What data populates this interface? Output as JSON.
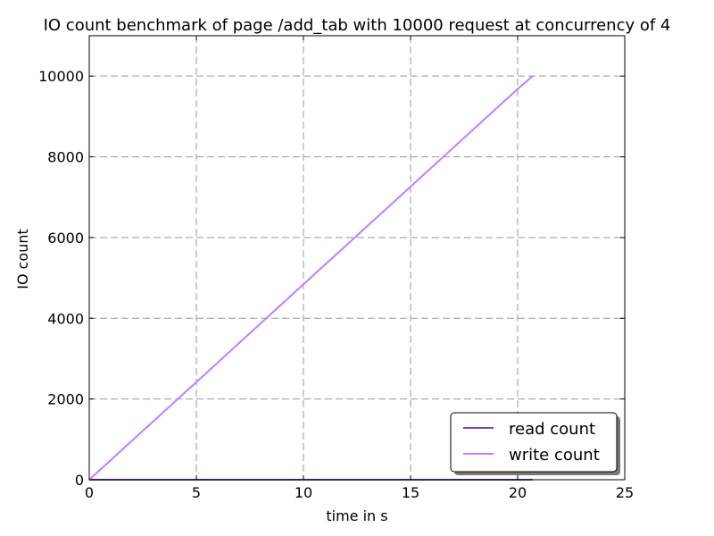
{
  "chart_data": {
    "type": "line",
    "title": "IO count benchmark of page /add_tab with 10000 request at concurrency of 4",
    "xlabel": "time in s",
    "ylabel": "IO count",
    "xlim": [
      0,
      25
    ],
    "ylim": [
      0,
      11000
    ],
    "xticks": [
      0,
      5,
      10,
      15,
      20,
      25
    ],
    "yticks": [
      0,
      2000,
      4000,
      6000,
      8000,
      10000
    ],
    "grid": true,
    "legend_position": "lower right",
    "series": [
      {
        "name": "read count",
        "color": "#7f3fbf",
        "x": [
          0,
          5,
          10,
          15,
          20,
          20.7
        ],
        "y": [
          0,
          0,
          0,
          0,
          0,
          0
        ]
      },
      {
        "name": "write count",
        "color": "#bf7fff",
        "x": [
          0,
          2.5,
          5,
          7.5,
          10,
          12.5,
          15,
          17.5,
          20,
          20.7
        ],
        "y": [
          0,
          1210,
          2420,
          3630,
          4840,
          6050,
          7260,
          8470,
          9680,
          10000
        ]
      }
    ]
  }
}
